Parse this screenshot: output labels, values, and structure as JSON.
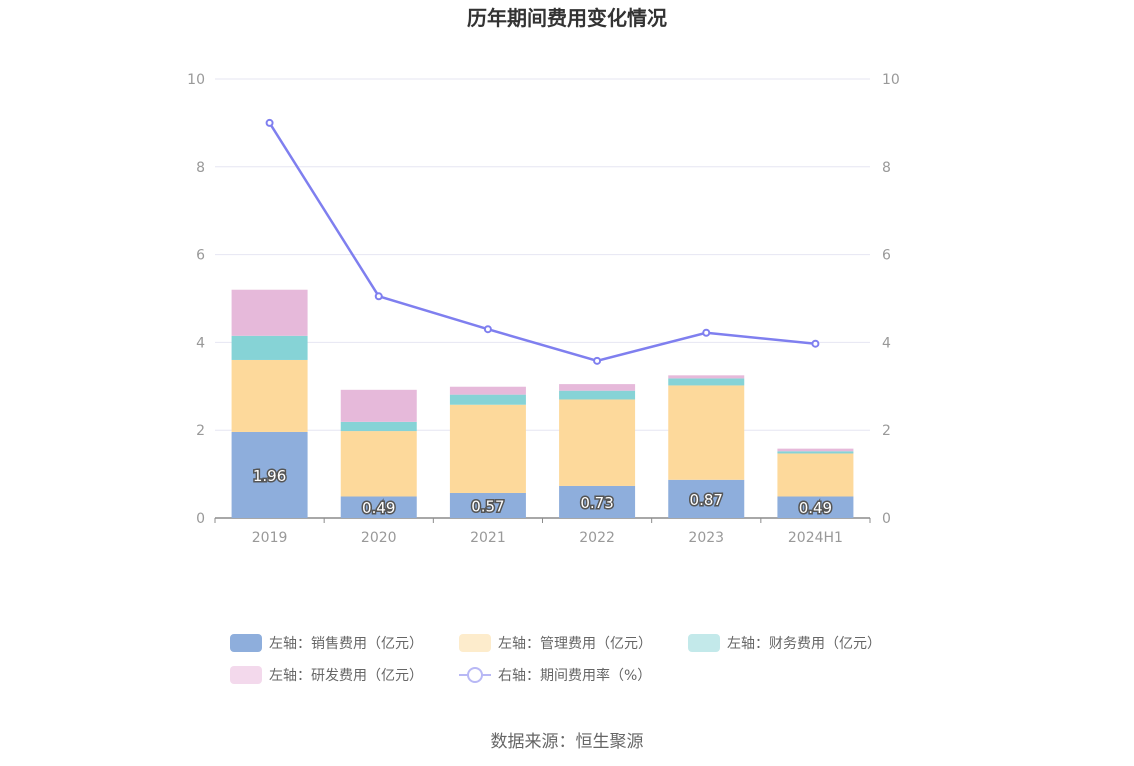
{
  "chart_data": {
    "type": "bar",
    "title": "历年期间费用变化情况",
    "categories": [
      "2019",
      "2020",
      "2021",
      "2022",
      "2023",
      "2024H1"
    ],
    "series": [
      {
        "name": "左轴：销售费用（亿元）",
        "kind": "bar",
        "color": "#8eaedc",
        "values": [
          1.96,
          0.49,
          0.57,
          0.73,
          0.87,
          0.49
        ],
        "labels": [
          "1.96",
          "0.49",
          "0.57",
          "0.73",
          "0.87",
          "0.49"
        ]
      },
      {
        "name": "左轴：管理费用（亿元）",
        "kind": "bar",
        "color": "#fdd99b",
        "values": [
          1.64,
          1.49,
          2.01,
          1.97,
          2.15,
          0.98
        ]
      },
      {
        "name": "左轴：财务费用（亿元）",
        "kind": "bar",
        "color": "#86d3d6",
        "values": [
          0.55,
          0.21,
          0.23,
          0.2,
          0.16,
          0.05
        ]
      },
      {
        "name": "左轴：研发费用（亿元）",
        "kind": "bar",
        "color": "#e6b9da",
        "values": [
          1.05,
          0.73,
          0.18,
          0.15,
          0.07,
          0.06
        ]
      },
      {
        "name": "右轴：期间费用率（%）",
        "kind": "line",
        "color": "#7f7fef",
        "values": [
          9.0,
          5.05,
          4.3,
          3.58,
          4.22,
          3.97
        ]
      }
    ],
    "yleft": {
      "min": 0,
      "max": 10,
      "ticks": [
        "0",
        "2",
        "4",
        "6",
        "8",
        "10"
      ]
    },
    "yright": {
      "min": 0,
      "max": 10,
      "ticks": [
        "0",
        "2",
        "4",
        "6",
        "8",
        "10"
      ]
    },
    "grid": true,
    "legend_position": "bottom"
  },
  "legend_colors": [
    "#8eaedc",
    "#fdeccc",
    "#c3e9ea",
    "#f3d9ec",
    "#b8b8f5"
  ],
  "source": "数据来源：恒生聚源"
}
